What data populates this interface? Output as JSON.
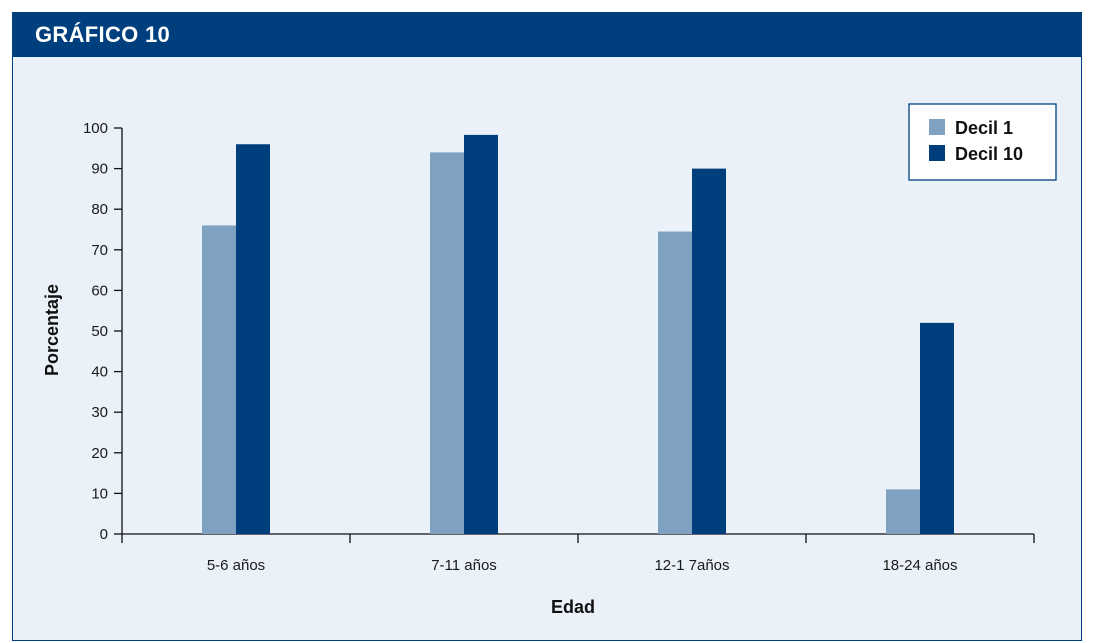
{
  "header": {
    "title": "GRÁFICO 10"
  },
  "colors": {
    "header": "#003f7d",
    "panel": "#eaf1f9",
    "decil1": "#7fa2c3",
    "decil10": "#003f7d"
  },
  "chart_data": {
    "type": "bar",
    "title": "",
    "xlabel": "Edad",
    "ylabel": "Porcentaje",
    "categories": [
      "5-6  años",
      "7-11 años",
      "12-1 7años",
      "18-24 años"
    ],
    "series": [
      {
        "name": "Decil 1",
        "values": [
          76,
          94,
          74.5,
          11
        ]
      },
      {
        "name": "Decil 10",
        "values": [
          96,
          98.3,
          90,
          52
        ]
      }
    ],
    "ylim": [
      0,
      100
    ],
    "yticks": [
      0,
      10,
      20,
      30,
      40,
      50,
      60,
      70,
      80,
      90,
      100
    ],
    "legend": "top-right",
    "grid": false
  }
}
